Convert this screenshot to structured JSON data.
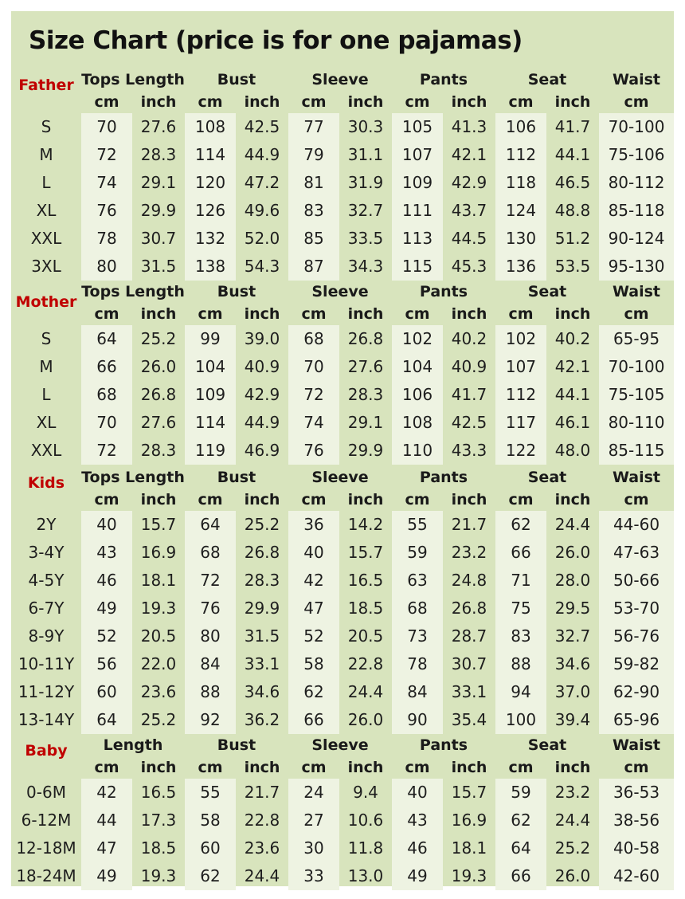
{
  "title": "Size Chart (price is for one pajamas)",
  "colors": {
    "background": "#d8e4bd",
    "stripe": "#eef3e2",
    "category": "#c00000",
    "text": "#1e1e1e"
  },
  "sections": [
    {
      "name": "Father",
      "groups": [
        "Tops Length",
        "Bust",
        "Sleeve",
        "Pants",
        "Seat",
        "Waist"
      ],
      "units": [
        "cm",
        "inch",
        "cm",
        "inch",
        "cm",
        "inch",
        "cm",
        "inch",
        "cm",
        "inch",
        "cm"
      ],
      "rows": [
        {
          "size": "S",
          "values": [
            "70",
            "27.6",
            "108",
            "42.5",
            "77",
            "30.3",
            "105",
            "41.3",
            "106",
            "41.7",
            "70-100"
          ]
        },
        {
          "size": "M",
          "values": [
            "72",
            "28.3",
            "114",
            "44.9",
            "79",
            "31.1",
            "107",
            "42.1",
            "112",
            "44.1",
            "75-106"
          ]
        },
        {
          "size": "L",
          "values": [
            "74",
            "29.1",
            "120",
            "47.2",
            "81",
            "31.9",
            "109",
            "42.9",
            "118",
            "46.5",
            "80-112"
          ]
        },
        {
          "size": "XL",
          "values": [
            "76",
            "29.9",
            "126",
            "49.6",
            "83",
            "32.7",
            "111",
            "43.7",
            "124",
            "48.8",
            "85-118"
          ]
        },
        {
          "size": "XXL",
          "values": [
            "78",
            "30.7",
            "132",
            "52.0",
            "85",
            "33.5",
            "113",
            "44.5",
            "130",
            "51.2",
            "90-124"
          ]
        },
        {
          "size": "3XL",
          "values": [
            "80",
            "31.5",
            "138",
            "54.3",
            "87",
            "34.3",
            "115",
            "45.3",
            "136",
            "53.5",
            "95-130"
          ]
        }
      ]
    },
    {
      "name": "Mother",
      "groups": [
        "Tops Length",
        "Bust",
        "Sleeve",
        "Pants",
        "Seat",
        "Waist"
      ],
      "units": [
        "cm",
        "inch",
        "cm",
        "inch",
        "cm",
        "inch",
        "cm",
        "inch",
        "cm",
        "inch",
        "cm"
      ],
      "rows": [
        {
          "size": "S",
          "values": [
            "64",
            "25.2",
            "99",
            "39.0",
            "68",
            "26.8",
            "102",
            "40.2",
            "102",
            "40.2",
            "65-95"
          ]
        },
        {
          "size": "M",
          "values": [
            "66",
            "26.0",
            "104",
            "40.9",
            "70",
            "27.6",
            "104",
            "40.9",
            "107",
            "42.1",
            "70-100"
          ]
        },
        {
          "size": "L",
          "values": [
            "68",
            "26.8",
            "109",
            "42.9",
            "72",
            "28.3",
            "106",
            "41.7",
            "112",
            "44.1",
            "75-105"
          ]
        },
        {
          "size": "XL",
          "values": [
            "70",
            "27.6",
            "114",
            "44.9",
            "74",
            "29.1",
            "108",
            "42.5",
            "117",
            "46.1",
            "80-110"
          ]
        },
        {
          "size": "XXL",
          "values": [
            "72",
            "28.3",
            "119",
            "46.9",
            "76",
            "29.9",
            "110",
            "43.3",
            "122",
            "48.0",
            "85-115"
          ]
        }
      ]
    },
    {
      "name": "Kids",
      "groups": [
        "Tops Length",
        "Bust",
        "Sleeve",
        "Pants",
        "Seat",
        "Waist"
      ],
      "units": [
        "cm",
        "inch",
        "cm",
        "inch",
        "cm",
        "inch",
        "cm",
        "inch",
        "cm",
        "inch",
        "cm"
      ],
      "rows": [
        {
          "size": "2Y",
          "values": [
            "40",
            "15.7",
            "64",
            "25.2",
            "36",
            "14.2",
            "55",
            "21.7",
            "62",
            "24.4",
            "44-60"
          ]
        },
        {
          "size": "3-4Y",
          "values": [
            "43",
            "16.9",
            "68",
            "26.8",
            "40",
            "15.7",
            "59",
            "23.2",
            "66",
            "26.0",
            "47-63"
          ]
        },
        {
          "size": "4-5Y",
          "values": [
            "46",
            "18.1",
            "72",
            "28.3",
            "42",
            "16.5",
            "63",
            "24.8",
            "71",
            "28.0",
            "50-66"
          ]
        },
        {
          "size": "6-7Y",
          "values": [
            "49",
            "19.3",
            "76",
            "29.9",
            "47",
            "18.5",
            "68",
            "26.8",
            "75",
            "29.5",
            "53-70"
          ]
        },
        {
          "size": "8-9Y",
          "values": [
            "52",
            "20.5",
            "80",
            "31.5",
            "52",
            "20.5",
            "73",
            "28.7",
            "83",
            "32.7",
            "56-76"
          ]
        },
        {
          "size": "10-11Y",
          "values": [
            "56",
            "22.0",
            "84",
            "33.1",
            "58",
            "22.8",
            "78",
            "30.7",
            "88",
            "34.6",
            "59-82"
          ]
        },
        {
          "size": "11-12Y",
          "values": [
            "60",
            "23.6",
            "88",
            "34.6",
            "62",
            "24.4",
            "84",
            "33.1",
            "94",
            "37.0",
            "62-90"
          ]
        },
        {
          "size": "13-14Y",
          "values": [
            "64",
            "25.2",
            "92",
            "36.2",
            "66",
            "26.0",
            "90",
            "35.4",
            "100",
            "39.4",
            "65-96"
          ]
        }
      ]
    },
    {
      "name": "Baby",
      "groups": [
        "Length",
        "Bust",
        "Sleeve",
        "Pants",
        "Seat",
        "Waist"
      ],
      "units": [
        "cm",
        "inch",
        "cm",
        "inch",
        "cm",
        "inch",
        "cm",
        "inch",
        "cm",
        "inch",
        "cm"
      ],
      "rows": [
        {
          "size": "0-6M",
          "values": [
            "42",
            "16.5",
            "55",
            "21.7",
            "24",
            "9.4",
            "40",
            "15.7",
            "59",
            "23.2",
            "36-53"
          ]
        },
        {
          "size": "6-12M",
          "values": [
            "44",
            "17.3",
            "58",
            "22.8",
            "27",
            "10.6",
            "43",
            "16.9",
            "62",
            "24.4",
            "38-56"
          ]
        },
        {
          "size": "12-18M",
          "values": [
            "47",
            "18.5",
            "60",
            "23.6",
            "30",
            "11.8",
            "46",
            "18.1",
            "64",
            "25.2",
            "40-58"
          ]
        },
        {
          "size": "18-24M",
          "values": [
            "49",
            "19.3",
            "62",
            "24.4",
            "33",
            "13.0",
            "49",
            "19.3",
            "66",
            "26.0",
            "42-60"
          ]
        }
      ]
    }
  ]
}
